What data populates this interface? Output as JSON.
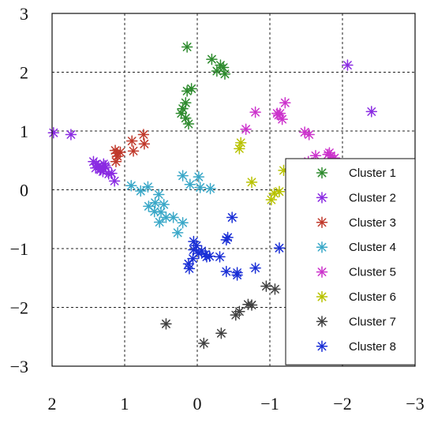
{
  "chart_data": {
    "type": "scatter",
    "title": "",
    "xlabel": "",
    "ylabel": "",
    "xlim": [
      2,
      -3
    ],
    "ylim": [
      -3,
      3
    ],
    "x_reversed": true,
    "grid": true,
    "marker": "asterisk",
    "legend_position": "lower-right",
    "xticks": [
      2,
      1,
      0,
      -1,
      -2,
      -3
    ],
    "xtick_labels": [
      "2",
      "1",
      "0",
      "−1",
      "−2",
      "−3"
    ],
    "yticks": [
      3,
      2,
      1,
      0,
      -1,
      -2,
      -3
    ],
    "ytick_labels": [
      "3",
      "2",
      "1",
      "0",
      "−1",
      "−2",
      "−3"
    ],
    "series": [
      {
        "name": "Cluster 1",
        "color": "#2e8b2e",
        "points": [
          [
            0.14,
            2.43
          ],
          [
            -0.2,
            2.22
          ],
          [
            -0.32,
            2.12
          ],
          [
            -0.36,
            2.08
          ],
          [
            -0.27,
            2.02
          ],
          [
            -0.38,
            1.97
          ],
          [
            0.08,
            1.72
          ],
          [
            0.14,
            1.68
          ],
          [
            0.16,
            1.48
          ],
          [
            0.2,
            1.38
          ],
          [
            0.22,
            1.3
          ],
          [
            0.16,
            1.22
          ],
          [
            0.12,
            1.12
          ]
        ]
      },
      {
        "name": "Cluster 2",
        "color": "#8a2be2",
        "points": [
          [
            1.98,
            0.97
          ],
          [
            1.74,
            0.94
          ],
          [
            -2.07,
            2.12
          ],
          [
            -2.4,
            1.33
          ],
          [
            1.43,
            0.48
          ],
          [
            1.39,
            0.44
          ],
          [
            1.36,
            0.41
          ],
          [
            1.4,
            0.37
          ],
          [
            1.33,
            0.34
          ],
          [
            1.29,
            0.44
          ],
          [
            1.26,
            0.38
          ],
          [
            1.22,
            0.27
          ],
          [
            1.18,
            0.28
          ],
          [
            1.14,
            0.15
          ],
          [
            1.3,
            0.31
          ],
          [
            1.34,
            0.36
          ],
          [
            1.27,
            0.41
          ]
        ]
      },
      {
        "name": "Cluster 3",
        "color": "#c0392b",
        "points": [
          [
            1.13,
            0.67
          ],
          [
            1.11,
            0.62
          ],
          [
            1.06,
            0.64
          ],
          [
            1.1,
            0.57
          ],
          [
            1.12,
            0.48
          ],
          [
            0.9,
            0.83
          ],
          [
            0.88,
            0.66
          ],
          [
            0.74,
            0.94
          ],
          [
            0.73,
            0.78
          ]
        ]
      },
      {
        "name": "Cluster 4",
        "color": "#3aa8c8",
        "points": [
          [
            0.91,
            0.07
          ],
          [
            0.68,
            0.05
          ],
          [
            0.2,
            0.24
          ],
          [
            -0.02,
            0.22
          ],
          [
            0.1,
            0.09
          ],
          [
            -0.04,
            0.04
          ],
          [
            -0.18,
            0.02
          ],
          [
            0.78,
            -0.02
          ],
          [
            0.53,
            -0.08
          ],
          [
            0.67,
            -0.28
          ],
          [
            0.58,
            -0.22
          ],
          [
            0.46,
            -0.25
          ],
          [
            0.5,
            -0.38
          ],
          [
            0.43,
            -0.47
          ],
          [
            0.59,
            -0.37
          ],
          [
            0.52,
            -0.55
          ],
          [
            0.33,
            -0.47
          ],
          [
            0.2,
            -0.56
          ],
          [
            0.27,
            -0.73
          ]
        ]
      },
      {
        "name": "Cluster 5",
        "color": "#cc33cc",
        "points": [
          [
            -0.67,
            1.03
          ],
          [
            -0.8,
            1.32
          ],
          [
            -1.12,
            1.27
          ],
          [
            -1.17,
            1.2
          ],
          [
            -1.1,
            1.3
          ],
          [
            -1.14,
            1.3
          ],
          [
            -1.21,
            1.48
          ],
          [
            -1.48,
            0.98
          ],
          [
            -1.54,
            0.94
          ],
          [
            -1.63,
            0.58
          ],
          [
            -1.8,
            0.6
          ],
          [
            -1.84,
            0.58
          ],
          [
            -1.82,
            0.63
          ],
          [
            -1.89,
            0.54
          ],
          [
            -1.53,
            0.48
          ],
          [
            -1.43,
            0.41
          ]
        ]
      },
      {
        "name": "Cluster 6",
        "color": "#b8c200",
        "points": [
          [
            -0.6,
            0.8
          ],
          [
            -0.58,
            0.7
          ],
          [
            -0.75,
            0.13
          ],
          [
            -1.02,
            -0.17
          ],
          [
            -1.06,
            -0.06
          ],
          [
            -1.13,
            -0.03
          ],
          [
            -1.19,
            0.33
          ],
          [
            -1.27,
            0.35
          ]
        ]
      },
      {
        "name": "Cluster 7",
        "color": "#404040",
        "points": [
          [
            0.43,
            -2.28
          ],
          [
            -0.09,
            -2.61
          ],
          [
            -0.33,
            -2.44
          ],
          [
            -0.53,
            -2.13
          ],
          [
            -0.58,
            -2.07
          ],
          [
            -0.7,
            -1.95
          ],
          [
            -0.75,
            -1.96
          ],
          [
            -0.95,
            -1.64
          ],
          [
            -1.07,
            -1.69
          ]
        ]
      },
      {
        "name": "Cluster 8",
        "color": "#1a2fd6",
        "points": [
          [
            -0.48,
            -0.47
          ],
          [
            -0.42,
            -0.81
          ],
          [
            -0.4,
            -0.85
          ],
          [
            0.05,
            -0.88
          ],
          [
            0.01,
            -0.95
          ],
          [
            -0.06,
            -1.04
          ],
          [
            -0.11,
            -1.1
          ],
          [
            -0.02,
            -1.08
          ],
          [
            -0.13,
            -1.14
          ],
          [
            0.06,
            -1.17
          ],
          [
            -0.17,
            -1.13
          ],
          [
            0.12,
            -1.26
          ],
          [
            0.11,
            -1.34
          ],
          [
            -0.31,
            -1.14
          ],
          [
            -0.4,
            -1.39
          ],
          [
            -0.55,
            -1.41
          ],
          [
            -0.55,
            -1.45
          ],
          [
            -0.8,
            -1.33
          ],
          [
            -1.13,
            -0.99
          ],
          [
            0.05,
            -1.02
          ]
        ]
      }
    ]
  }
}
